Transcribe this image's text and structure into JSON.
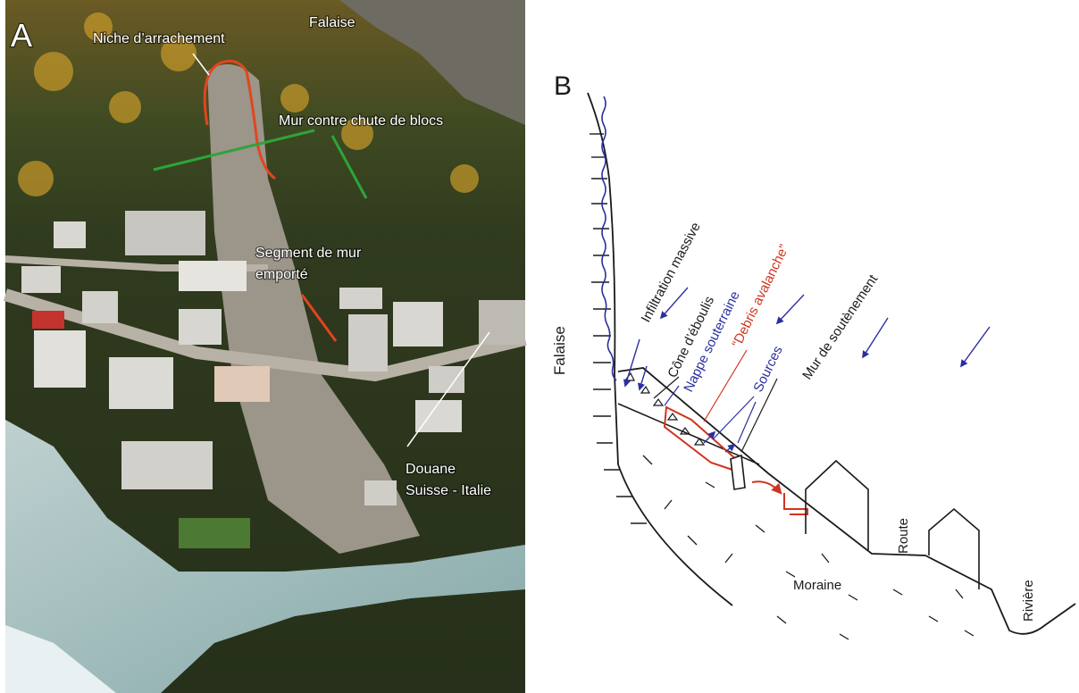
{
  "panels": {
    "a": {
      "letter": "A",
      "labels": {
        "falaise": "Falaise",
        "niche": "Niche d’arrachement",
        "mur_chute": "Mur contre chute de blocs",
        "segment_1": "Segment de mur",
        "segment_2": "emporté",
        "douane_1": "Douane",
        "douane_2": "Suisse - Italie"
      },
      "colors": {
        "scar_outline": "#e2451f",
        "wall_line": "#2fa33a",
        "segment_line": "#e2451f",
        "leader_line": "#ffffff"
      }
    },
    "b": {
      "letter": "B",
      "labels": {
        "falaise": "Falaise",
        "infiltration": "Infiltration massive",
        "cone": "Cône d’éboulis",
        "nappe": "Nappe souterraine",
        "debris": "“Debris avalanche”",
        "sources": "Sources",
        "mur": "Mur de soutènement",
        "route": "Route",
        "moraine": "Moraine",
        "riviere": "Rivière"
      },
      "colors": {
        "water": "#2b2f9e",
        "debris": "#d0341e",
        "ink": "#1a1a1a"
      }
    }
  }
}
